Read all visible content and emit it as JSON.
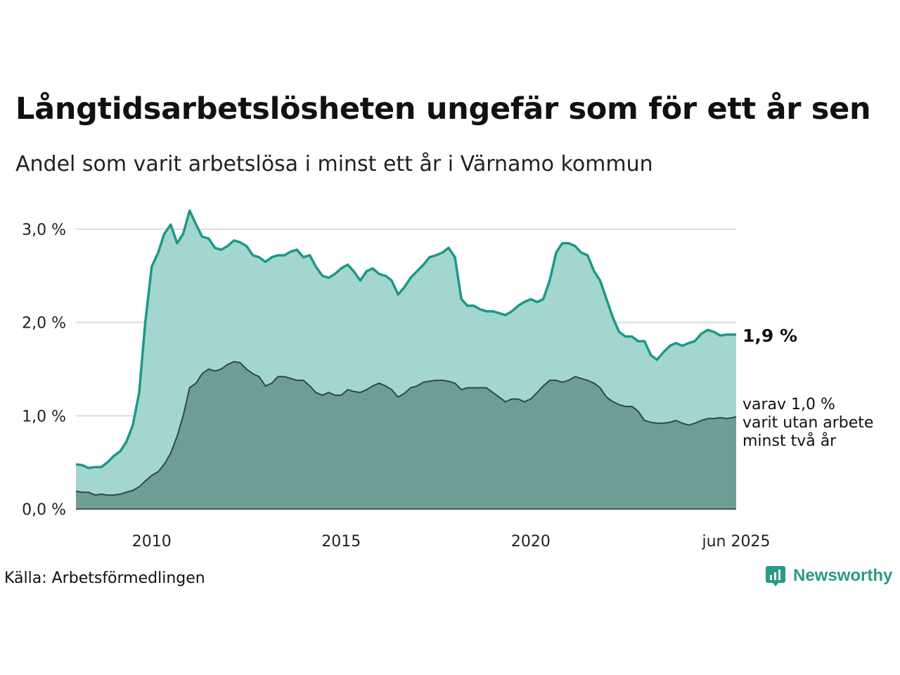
{
  "title": "Långtidsarbetslösheten ungefär som för ett år sen",
  "subtitle": "Andel som varit arbetslösa i minst ett år i Värnamo kommun",
  "source": "Källa: Arbetsförmedlingen",
  "logo": {
    "name": "Newsworthy",
    "icon": "newsworthy-chart-icon"
  },
  "colors": {
    "series1_line": "#1b9986",
    "series1_fill": "#a3d6cf",
    "series2_line": "#2f4a45",
    "series2_fill": "#6f9d95",
    "grid": "#dddddd"
  },
  "labels": {
    "end_value": "1,9 %",
    "end_note_1": "varav 1,0 %",
    "end_note_2": "varit utan arbete",
    "end_note_3": "minst två år"
  },
  "chart_data": {
    "type": "area",
    "title": "Långtidsarbetslösheten ungefär som för ett år sen",
    "subtitle": "Andel som varit arbetslösa i minst ett år i Värnamo kommun",
    "xlabel": "",
    "ylabel": "",
    "xlim": [
      2008.0,
      2025.42
    ],
    "ylim": [
      0,
      3.0
    ],
    "y_ticks": [
      0,
      1.0,
      2.0,
      3.0
    ],
    "y_tick_labels": [
      "0,0 %",
      "1,0 %",
      "2,0 %",
      "3,0 %"
    ],
    "x_ticks": [
      2010,
      2015,
      2020,
      2025.42
    ],
    "x_tick_labels": [
      "2010",
      "2015",
      "2020",
      "jun 2025"
    ],
    "grid": true,
    "series": [
      {
        "name": "",
        "x": [
          2008.0,
          2008.17,
          2008.33,
          2008.5,
          2008.67,
          2008.83,
          2009.0,
          2009.17,
          2009.33,
          2009.5,
          2009.67,
          2009.83,
          2010.0,
          2010.17,
          2010.33,
          2010.5,
          2010.67,
          2010.83,
          2011.0,
          2011.17,
          2011.33,
          2011.5,
          2011.67,
          2011.83,
          2012.0,
          2012.17,
          2012.33,
          2012.5,
          2012.67,
          2012.83,
          2013.0,
          2013.17,
          2013.33,
          2013.5,
          2013.67,
          2013.83,
          2014.0,
          2014.17,
          2014.33,
          2014.5,
          2014.67,
          2014.83,
          2015.0,
          2015.17,
          2015.33,
          2015.5,
          2015.67,
          2015.83,
          2016.0,
          2016.17,
          2016.33,
          2016.5,
          2016.67,
          2016.83,
          2017.0,
          2017.17,
          2017.33,
          2017.5,
          2017.67,
          2017.83,
          2018.0,
          2018.17,
          2018.33,
          2018.5,
          2018.67,
          2018.83,
          2019.0,
          2019.17,
          2019.33,
          2019.5,
          2019.67,
          2019.83,
          2020.0,
          2020.17,
          2020.33,
          2020.5,
          2020.67,
          2020.83,
          2021.0,
          2021.17,
          2021.33,
          2021.5,
          2021.67,
          2021.83,
          2022.0,
          2022.17,
          2022.33,
          2022.5,
          2022.67,
          2022.83,
          2023.0,
          2023.17,
          2023.33,
          2023.5,
          2023.67,
          2023.83,
          2024.0,
          2024.17,
          2024.33,
          2024.5,
          2024.67,
          2024.83,
          2025.0,
          2025.17,
          2025.33,
          2025.42
        ],
        "y": [
          0.48,
          0.47,
          0.44,
          0.45,
          0.45,
          0.5,
          0.57,
          0.62,
          0.72,
          0.9,
          1.25,
          2.0,
          2.6,
          2.75,
          2.95,
          3.05,
          2.85,
          2.95,
          3.2,
          3.05,
          2.92,
          2.9,
          2.8,
          2.78,
          2.82,
          2.88,
          2.86,
          2.82,
          2.72,
          2.7,
          2.65,
          2.7,
          2.72,
          2.72,
          2.76,
          2.78,
          2.7,
          2.72,
          2.6,
          2.5,
          2.48,
          2.52,
          2.58,
          2.62,
          2.55,
          2.45,
          2.55,
          2.58,
          2.52,
          2.5,
          2.45,
          2.3,
          2.38,
          2.48,
          2.55,
          2.62,
          2.7,
          2.72,
          2.75,
          2.8,
          2.7,
          2.25,
          2.18,
          2.18,
          2.14,
          2.12,
          2.12,
          2.1,
          2.08,
          2.12,
          2.18,
          2.22,
          2.25,
          2.22,
          2.25,
          2.45,
          2.75,
          2.85,
          2.85,
          2.82,
          2.75,
          2.72,
          2.55,
          2.45,
          2.25,
          2.05,
          1.9,
          1.85,
          1.85,
          1.8,
          1.8,
          1.65,
          1.6,
          1.68,
          1.75,
          1.78,
          1.75,
          1.78,
          1.8,
          1.88,
          1.92,
          1.9,
          1.86,
          1.87,
          1.87,
          1.87
        ]
      },
      {
        "name": "varit utan arbete minst två år",
        "x": [
          2008.0,
          2008.17,
          2008.33,
          2008.5,
          2008.67,
          2008.83,
          2009.0,
          2009.17,
          2009.33,
          2009.5,
          2009.67,
          2009.83,
          2010.0,
          2010.17,
          2010.33,
          2010.5,
          2010.67,
          2010.83,
          2011.0,
          2011.17,
          2011.33,
          2011.5,
          2011.67,
          2011.83,
          2012.0,
          2012.17,
          2012.33,
          2012.5,
          2012.67,
          2012.83,
          2013.0,
          2013.17,
          2013.33,
          2013.5,
          2013.67,
          2013.83,
          2014.0,
          2014.17,
          2014.33,
          2014.5,
          2014.67,
          2014.83,
          2015.0,
          2015.17,
          2015.33,
          2015.5,
          2015.67,
          2015.83,
          2016.0,
          2016.17,
          2016.33,
          2016.5,
          2016.67,
          2016.83,
          2017.0,
          2017.17,
          2017.33,
          2017.5,
          2017.67,
          2017.83,
          2018.0,
          2018.17,
          2018.33,
          2018.5,
          2018.67,
          2018.83,
          2019.0,
          2019.17,
          2019.33,
          2019.5,
          2019.67,
          2019.83,
          2020.0,
          2020.17,
          2020.33,
          2020.5,
          2020.67,
          2020.83,
          2021.0,
          2021.17,
          2021.33,
          2021.5,
          2021.67,
          2021.83,
          2022.0,
          2022.17,
          2022.33,
          2022.5,
          2022.67,
          2022.83,
          2023.0,
          2023.17,
          2023.33,
          2023.5,
          2023.67,
          2023.83,
          2024.0,
          2024.17,
          2024.33,
          2024.5,
          2024.67,
          2024.83,
          2025.0,
          2025.17,
          2025.33,
          2025.42
        ],
        "y": [
          0.19,
          0.18,
          0.18,
          0.15,
          0.16,
          0.15,
          0.15,
          0.16,
          0.18,
          0.2,
          0.24,
          0.3,
          0.36,
          0.4,
          0.48,
          0.6,
          0.78,
          1.0,
          1.3,
          1.35,
          1.45,
          1.5,
          1.48,
          1.5,
          1.55,
          1.58,
          1.57,
          1.5,
          1.45,
          1.42,
          1.32,
          1.35,
          1.42,
          1.42,
          1.4,
          1.38,
          1.38,
          1.32,
          1.25,
          1.22,
          1.25,
          1.22,
          1.22,
          1.28,
          1.26,
          1.25,
          1.28,
          1.32,
          1.35,
          1.32,
          1.28,
          1.2,
          1.24,
          1.3,
          1.32,
          1.36,
          1.37,
          1.38,
          1.38,
          1.37,
          1.35,
          1.28,
          1.3,
          1.3,
          1.3,
          1.3,
          1.25,
          1.2,
          1.15,
          1.18,
          1.18,
          1.15,
          1.18,
          1.25,
          1.32,
          1.38,
          1.38,
          1.36,
          1.38,
          1.42,
          1.4,
          1.38,
          1.35,
          1.3,
          1.2,
          1.15,
          1.12,
          1.1,
          1.1,
          1.05,
          0.95,
          0.93,
          0.92,
          0.92,
          0.93,
          0.95,
          0.92,
          0.9,
          0.92,
          0.95,
          0.97,
          0.97,
          0.98,
          0.97,
          0.98,
          0.99
        ]
      }
    ]
  }
}
